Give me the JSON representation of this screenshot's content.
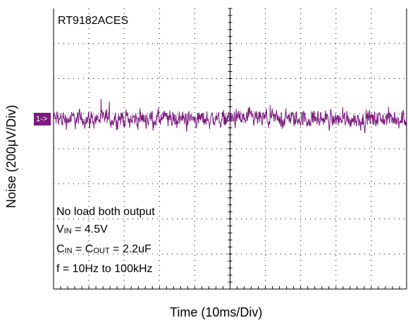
{
  "chart_data": {
    "type": "line",
    "title": "RT9182ACES",
    "xlabel": "Time (10ms/Div)",
    "ylabel": "Noise (200μV/Div)",
    "grid": true,
    "x_divisions": 10,
    "y_divisions": 8,
    "channel_marker": "1->",
    "trace_color": "#7b1a7f",
    "series": [
      {
        "y_center_div": 0.85,
        "noise_pp_div": 1.2
      }
    ],
    "annotations": {
      "line1": "No load both output",
      "line2_a": "V",
      "line2_sub": "IN",
      "line2_b": " = 4.5V",
      "line3_a": "C",
      "line3_sub1": "IN",
      "line3_b": " = C",
      "line3_sub2": "OUT",
      "line3_c": " = 2.2uF",
      "line4": "f = 10Hz to 100kHz"
    }
  }
}
